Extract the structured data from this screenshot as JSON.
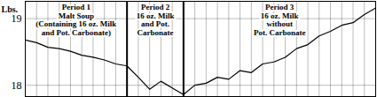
{
  "chart_data": {
    "type": "line",
    "y_label": "Lbs.",
    "x": [
      0,
      1,
      2,
      3,
      4,
      5,
      6,
      7,
      8,
      9,
      10,
      11,
      12,
      13,
      14,
      15,
      16,
      17,
      18,
      19,
      20,
      21,
      22,
      23,
      24,
      25,
      26,
      27,
      28,
      29,
      30,
      31
    ],
    "values": [
      18.68,
      18.64,
      18.57,
      18.55,
      18.51,
      18.45,
      18.42,
      18.38,
      18.32,
      18.29,
      18.12,
      17.94,
      18.06,
      17.96,
      17.86,
      18.0,
      18.03,
      18.12,
      18.09,
      18.22,
      18.19,
      18.32,
      18.35,
      18.42,
      18.55,
      18.61,
      18.74,
      18.81,
      18.9,
      18.94,
      19.06,
      19.16
    ],
    "color": "#000000",
    "xlim": [
      0,
      31
    ],
    "xticks": [
      0,
      1,
      2,
      3,
      4,
      5,
      6,
      7,
      8,
      9,
      10,
      11,
      12,
      13,
      14,
      15,
      16,
      17,
      18,
      19,
      20,
      21,
      22,
      23,
      24,
      25,
      26,
      27,
      28,
      29,
      30,
      31
    ],
    "ylim": [
      17.83,
      19.26
    ],
    "yticks": [
      18,
      19
    ],
    "grid": true,
    "tick_labels": "y",
    "periods": [
      {
        "label": [
          "Period 1",
          "Malt Soup",
          "(Containing 16 oz. Milk",
          "and Pot. Carbonate)"
        ],
        "start": 0,
        "end": 9
      },
      {
        "label": [
          "Period 2",
          "16 oz. Milk",
          "and Pot.",
          "Carbonate"
        ],
        "start": 9,
        "end": 14
      },
      {
        "label": [
          "Period 3",
          "16 oz. Milk",
          "without",
          "Pot. Carbonate"
        ],
        "start": 14,
        "end": 31
      }
    ]
  }
}
